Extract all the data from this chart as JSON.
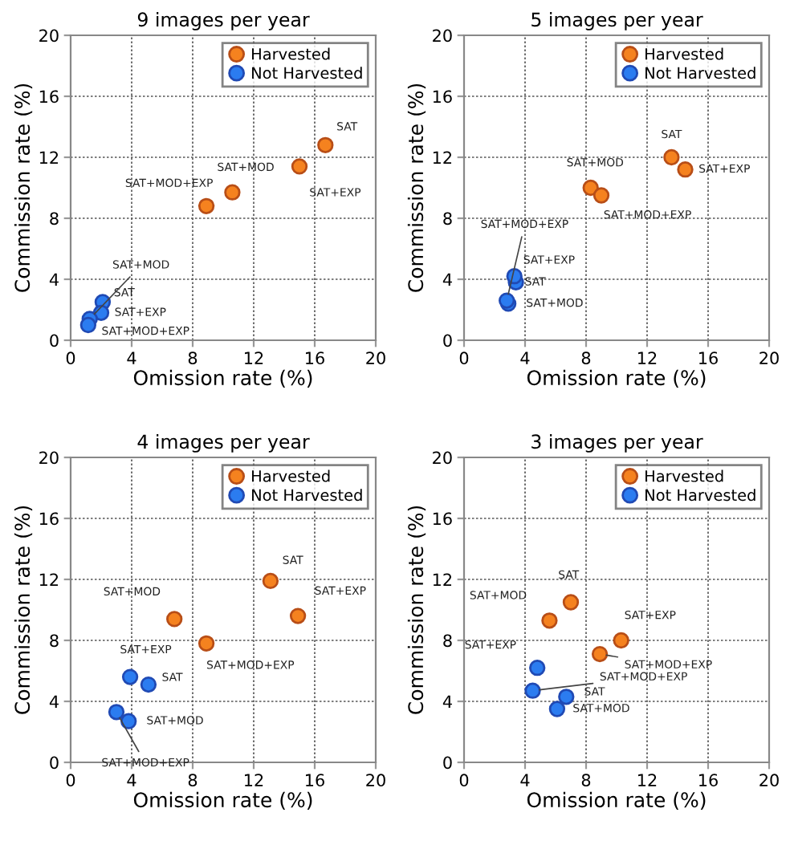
{
  "chart_data": [
    {
      "type": "scatter",
      "title": "9 images per year",
      "xlabel": "Omission rate (%)",
      "ylabel": "Commission rate (%)",
      "xlim": [
        0,
        20
      ],
      "ylim": [
        0,
        20
      ],
      "xticks": [
        0,
        4,
        8,
        12,
        16,
        20
      ],
      "yticks": [
        0,
        4,
        8,
        12,
        16,
        20
      ],
      "grid": true,
      "legend": "top right",
      "marker": "circle",
      "series": [
        {
          "name": "Harvested",
          "color": "#f5821f",
          "x": [
            16.7,
            15.0,
            10.6,
            8.9
          ],
          "values": [
            12.8,
            11.4,
            9.7,
            8.8
          ]
        },
        {
          "name": "Not Harvested",
          "color": "#2b7cf0",
          "x": [
            2.1,
            2.0,
            1.25,
            1.15
          ],
          "values": [
            2.5,
            1.8,
            1.4,
            1.0
          ]
        }
      ],
      "annotations": [
        {
          "text": "SAT",
          "x": 16.7,
          "y": 12.8
        },
        {
          "text": "SAT+EXP",
          "x": 15.0,
          "y": 11.4
        },
        {
          "text": "SAT+MOD",
          "x": 10.6,
          "y": 9.7
        },
        {
          "text": "SAT+MOD+EXP",
          "x": 8.9,
          "y": 8.8
        },
        {
          "text": "SAT",
          "x": 2.1,
          "y": 2.5
        },
        {
          "text": "SAT+EXP",
          "x": 2.0,
          "y": 1.8
        },
        {
          "text": "SAT+MOD",
          "x": 1.25,
          "y": 1.4
        },
        {
          "text": "SAT+MOD+EXP",
          "x": 1.15,
          "y": 1.0
        }
      ]
    },
    {
      "type": "scatter",
      "title": "5 images per year",
      "xlabel": "Omission rate (%)",
      "ylabel": "Commission rate (%)",
      "xlim": [
        0,
        20
      ],
      "ylim": [
        0,
        20
      ],
      "xticks": [
        0,
        4,
        8,
        12,
        16,
        20
      ],
      "yticks": [
        0,
        4,
        8,
        12,
        16,
        20
      ],
      "grid": true,
      "legend": "top right",
      "marker": "circle",
      "series": [
        {
          "name": "Harvested",
          "color": "#f5821f",
          "x": [
            13.6,
            14.5,
            8.3,
            9.0
          ],
          "values": [
            12.0,
            11.2,
            10.0,
            9.5
          ]
        },
        {
          "name": "Not Harvested",
          "color": "#2b7cf0",
          "x": [
            3.4,
            3.3,
            2.9,
            2.8
          ],
          "values": [
            3.8,
            4.2,
            2.4,
            2.6
          ]
        }
      ],
      "annotations": [
        {
          "text": "SAT",
          "x": 13.6,
          "y": 12.0
        },
        {
          "text": "SAT+EXP",
          "x": 14.5,
          "y": 11.2
        },
        {
          "text": "SAT+MOD",
          "x": 8.3,
          "y": 10.0
        },
        {
          "text": "SAT+MOD+EXP",
          "x": 9.0,
          "y": 9.5
        },
        {
          "text": "SAT",
          "x": 3.4,
          "y": 3.8
        },
        {
          "text": "SAT+EXP",
          "x": 3.3,
          "y": 4.2
        },
        {
          "text": "SAT+MOD",
          "x": 2.9,
          "y": 2.4
        },
        {
          "text": "SAT+MOD+EXP",
          "x": 2.8,
          "y": 2.6
        }
      ]
    },
    {
      "type": "scatter",
      "title": "4 images per year",
      "xlabel": "Omission rate (%)",
      "ylabel": "Commission rate (%)",
      "xlim": [
        0,
        20
      ],
      "ylim": [
        0,
        20
      ],
      "xticks": [
        0,
        4,
        8,
        12,
        16,
        20
      ],
      "yticks": [
        0,
        4,
        8,
        12,
        16,
        20
      ],
      "grid": true,
      "legend": "top right",
      "marker": "circle",
      "series": [
        {
          "name": "Harvested",
          "color": "#f5821f",
          "x": [
            13.1,
            14.9,
            6.8,
            8.9
          ],
          "values": [
            11.9,
            9.6,
            9.4,
            7.8
          ]
        },
        {
          "name": "Not Harvested",
          "color": "#2b7cf0",
          "x": [
            5.1,
            3.9,
            3.8,
            3.0
          ],
          "values": [
            5.1,
            5.6,
            2.7,
            3.3
          ]
        }
      ],
      "annotations": [
        {
          "text": "SAT",
          "x": 13.1,
          "y": 11.9
        },
        {
          "text": "SAT+EXP",
          "x": 14.9,
          "y": 9.6
        },
        {
          "text": "SAT+MOD",
          "x": 6.8,
          "y": 9.4
        },
        {
          "text": "SAT+MOD+EXP",
          "x": 8.9,
          "y": 7.8
        },
        {
          "text": "SAT",
          "x": 5.1,
          "y": 5.1
        },
        {
          "text": "SAT+EXP",
          "x": 3.9,
          "y": 5.6
        },
        {
          "text": "SAT+MOD",
          "x": 3.8,
          "y": 2.7
        },
        {
          "text": "SAT+MOD+EXP",
          "x": 3.0,
          "y": 3.3
        }
      ]
    },
    {
      "type": "scatter",
      "title": "3 images per year",
      "xlabel": "Omission rate (%)",
      "ylabel": "Commission rate (%)",
      "xlim": [
        0,
        20
      ],
      "ylim": [
        0,
        20
      ],
      "xticks": [
        0,
        4,
        8,
        12,
        16,
        20
      ],
      "yticks": [
        0,
        4,
        8,
        12,
        16,
        20
      ],
      "grid": true,
      "legend": "top right",
      "marker": "circle",
      "series": [
        {
          "name": "Harvested",
          "color": "#f5821f",
          "x": [
            7.0,
            10.3,
            5.6,
            8.9
          ],
          "values": [
            10.5,
            8.0,
            9.3,
            7.1
          ]
        },
        {
          "name": "Not Harvested",
          "color": "#2b7cf0",
          "x": [
            6.7,
            4.8,
            6.1,
            4.5
          ],
          "values": [
            4.3,
            6.2,
            3.5,
            4.7
          ]
        }
      ],
      "annotations": [
        {
          "text": "SAT",
          "x": 7.0,
          "y": 10.5
        },
        {
          "text": "SAT+EXP",
          "x": 10.3,
          "y": 8.0
        },
        {
          "text": "SAT+MOD",
          "x": 5.6,
          "y": 9.3
        },
        {
          "text": "SAT+MOD+EXP",
          "x": 8.9,
          "y": 7.1
        },
        {
          "text": "SAT",
          "x": 6.7,
          "y": 4.3
        },
        {
          "text": "SAT+EXP",
          "x": 4.8,
          "y": 6.2
        },
        {
          "text": "SAT+MOD",
          "x": 6.1,
          "y": 3.5
        },
        {
          "text": "SAT+MOD+EXP",
          "x": 4.5,
          "y": 4.7
        }
      ]
    }
  ]
}
